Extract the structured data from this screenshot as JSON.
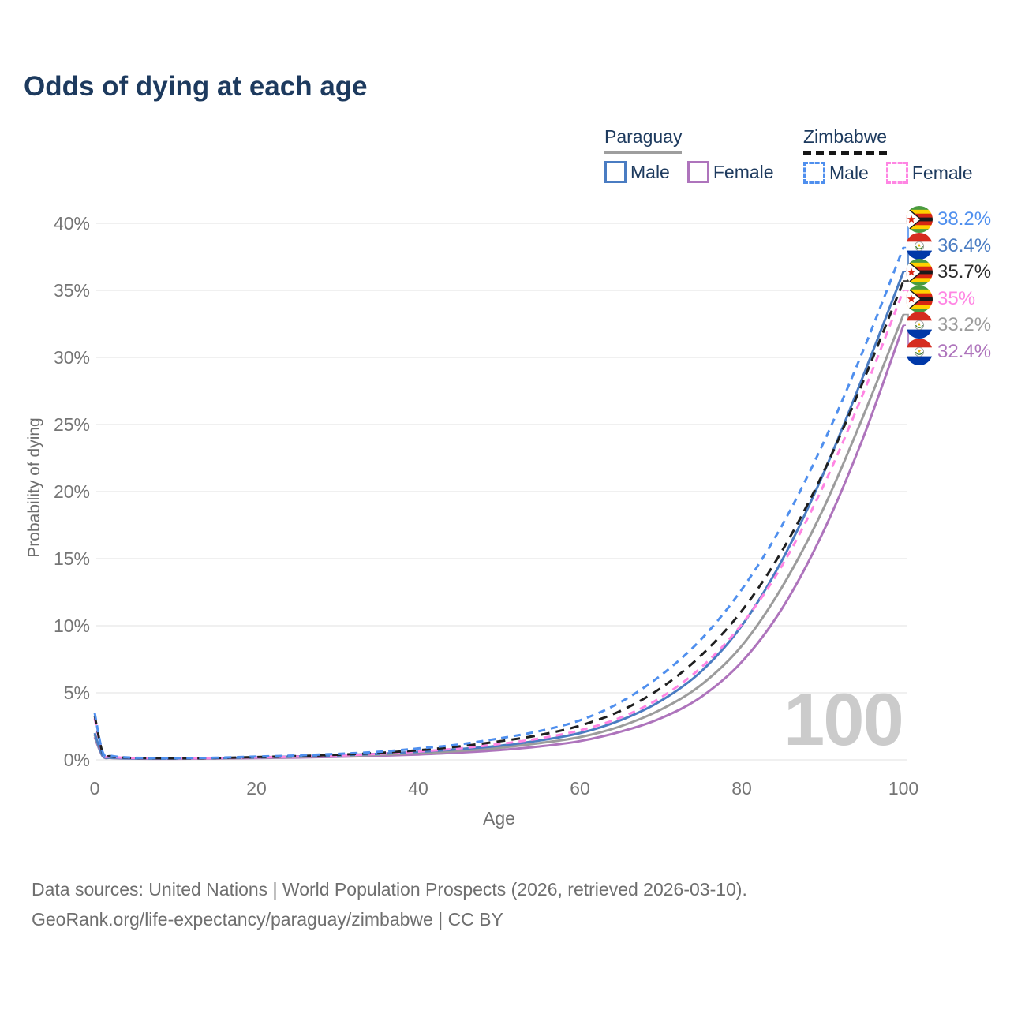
{
  "title": "Odds of dying at each age",
  "watermark": "100",
  "legend": {
    "groups": [
      {
        "label": "Paraguay",
        "underline": "solid",
        "underline_color": "#9e9e9e",
        "items": [
          {
            "label": "Male",
            "color": "#4a7cc2",
            "dashed": false
          },
          {
            "label": "Female",
            "color": "#ae74bc",
            "dashed": false
          }
        ]
      },
      {
        "label": "Zimbabwe",
        "underline": "dashed",
        "underline_color": "#161616",
        "items": [
          {
            "label": "Male",
            "color": "#4f8fee",
            "dashed": true
          },
          {
            "label": "Female",
            "color": "#ff85e3",
            "dashed": true
          }
        ]
      }
    ]
  },
  "chart_data": {
    "type": "line",
    "title": "Odds of dying at each age",
    "xlabel": "Age",
    "ylabel": "Probability of dying",
    "xlim": [
      0,
      100
    ],
    "ylim": [
      0,
      40
    ],
    "grid": "horizontal",
    "x_ticks": [
      "0",
      "20",
      "40",
      "60",
      "80",
      "100"
    ],
    "x_tick_values": [
      0,
      20,
      40,
      60,
      80,
      100
    ],
    "y_ticks": [
      "0%",
      "5%",
      "10%",
      "15%",
      "20%",
      "25%",
      "30%",
      "35%",
      "40%"
    ],
    "y_tick_values": [
      0,
      5,
      10,
      15,
      20,
      25,
      30,
      35,
      40
    ],
    "ages": [
      0,
      1,
      2,
      4,
      7,
      10,
      15,
      20,
      25,
      30,
      35,
      40,
      45,
      50,
      55,
      60,
      65,
      70,
      75,
      80,
      85,
      90,
      95,
      100
    ],
    "series": [
      {
        "name": "Paraguay Female",
        "country": "paraguay",
        "sex": "female",
        "style": "solid",
        "color": "#ae74bc",
        "end_value": 32.4,
        "end_label": "32.4%",
        "values": [
          1.7,
          0.25,
          0.14,
          0.1,
          0.08,
          0.08,
          0.1,
          0.13,
          0.17,
          0.23,
          0.3,
          0.4,
          0.54,
          0.73,
          1.0,
          1.4,
          2.1,
          3.1,
          4.7,
          7.3,
          11.3,
          16.9,
          24.0,
          32.4
        ]
      },
      {
        "name": "Paraguay Both",
        "country": "paraguay",
        "sex": "both",
        "style": "solid",
        "color": "#9c9c9c",
        "end_value": 33.2,
        "end_label": "33.2%",
        "values": [
          1.85,
          0.28,
          0.15,
          0.11,
          0.09,
          0.09,
          0.11,
          0.16,
          0.21,
          0.28,
          0.38,
          0.5,
          0.67,
          0.9,
          1.25,
          1.7,
          2.5,
          3.75,
          5.6,
          8.5,
          12.9,
          18.6,
          25.6,
          33.2
        ]
      },
      {
        "name": "Paraguay Male",
        "country": "paraguay",
        "sex": "male",
        "style": "solid",
        "color": "#4a7cc2",
        "end_value": 36.4,
        "end_label": "36.4%",
        "values": [
          2.0,
          0.3,
          0.17,
          0.12,
          0.1,
          0.1,
          0.13,
          0.19,
          0.26,
          0.34,
          0.45,
          0.6,
          0.8,
          1.05,
          1.45,
          2.0,
          2.95,
          4.4,
          6.6,
          10.0,
          14.9,
          21.2,
          28.6,
          36.4
        ]
      },
      {
        "name": "Zimbabwe Female",
        "country": "zimbabwe",
        "sex": "female",
        "style": "dashed",
        "color": "#ff85e3",
        "end_value": 35.0,
        "end_label": "35%",
        "values": [
          3.1,
          0.45,
          0.24,
          0.15,
          0.12,
          0.11,
          0.13,
          0.18,
          0.24,
          0.32,
          0.45,
          0.62,
          0.85,
          1.18,
          1.6,
          2.2,
          3.15,
          4.65,
          6.9,
          10.1,
          14.5,
          20.3,
          27.3,
          35.0
        ]
      },
      {
        "name": "Zimbabwe Both",
        "country": "zimbabwe",
        "sex": "both",
        "style": "dashed",
        "color": "#1f1f1f",
        "end_value": 35.7,
        "end_label": "35.7%",
        "values": [
          3.3,
          0.5,
          0.27,
          0.16,
          0.13,
          0.12,
          0.14,
          0.21,
          0.28,
          0.38,
          0.52,
          0.72,
          1.0,
          1.38,
          1.85,
          2.55,
          3.65,
          5.35,
          7.8,
          11.1,
          15.6,
          21.3,
          28.2,
          35.7
        ]
      },
      {
        "name": "Zimbabwe Male",
        "country": "zimbabwe",
        "sex": "male",
        "style": "dashed",
        "color": "#4f8fee",
        "end_value": 38.2,
        "end_label": "38.2%",
        "values": [
          3.5,
          0.55,
          0.3,
          0.18,
          0.14,
          0.13,
          0.16,
          0.25,
          0.33,
          0.45,
          0.6,
          0.85,
          1.15,
          1.6,
          2.15,
          2.95,
          4.3,
          6.3,
          9.0,
          12.7,
          17.5,
          23.5,
          30.5,
          38.2
        ]
      }
    ],
    "end_labels": [
      {
        "text": "38.2%",
        "value": 38.2,
        "color": "#4f8fee",
        "flag": "zimbabwe",
        "series": "Zimbabwe Male"
      },
      {
        "text": "36.4%",
        "value": 36.4,
        "color": "#4a7cc2",
        "flag": "paraguay",
        "series": "Paraguay Male"
      },
      {
        "text": "35.7%",
        "value": 35.7,
        "color": "#2b2b2b",
        "flag": "zimbabwe",
        "series": "Zimbabwe Both"
      },
      {
        "text": "35%",
        "value": 35.0,
        "color": "#ff85e3",
        "flag": "zimbabwe",
        "series": "Zimbabwe Female"
      },
      {
        "text": "33.2%",
        "value": 33.2,
        "color": "#9c9c9c",
        "flag": "paraguay",
        "series": "Paraguay Both"
      },
      {
        "text": "32.4%",
        "value": 32.4,
        "color": "#ae74bc",
        "flag": "paraguay",
        "series": "Paraguay Female"
      }
    ]
  },
  "footer": {
    "line1": "Data sources: United Nations | World Population Prospects (2026, retrieved 2026-03-10).",
    "line2": "GeoRank.org/life-expectancy/paraguay/zimbabwe | CC BY"
  }
}
